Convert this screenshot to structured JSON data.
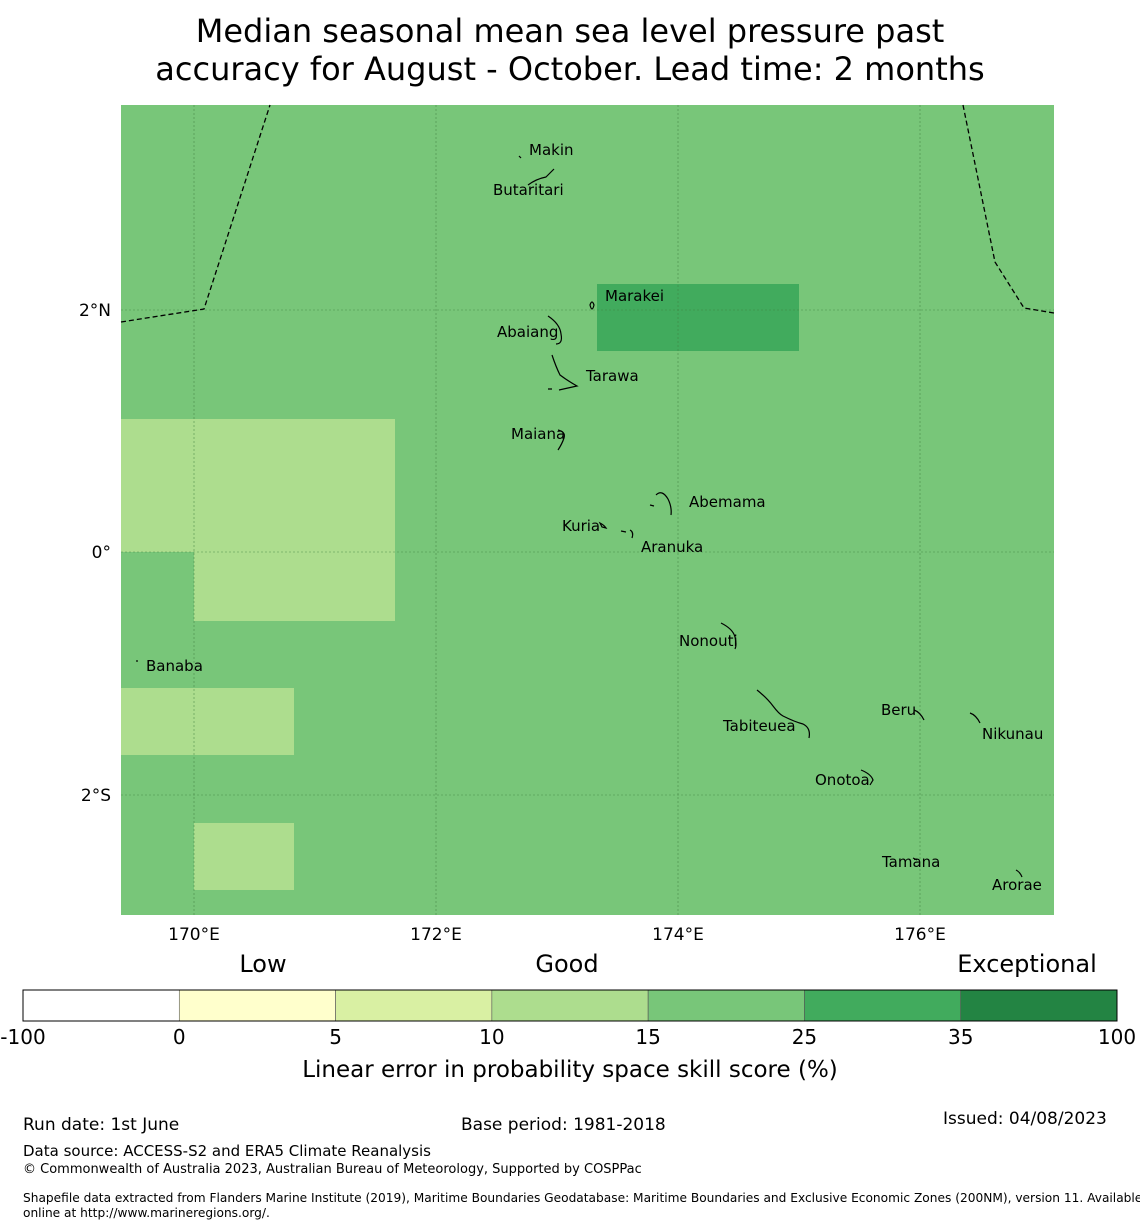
{
  "title": {
    "line1": "Median seasonal mean sea level pressure past",
    "line2": "accuracy for August - October. Lead time: 2 months"
  },
  "map": {
    "background_color": "#78c679",
    "lat_labels": [
      "2°N",
      "0°",
      "2°S"
    ],
    "lon_labels": [
      "170°E",
      "172°E",
      "174°E",
      "176°E"
    ],
    "islands": [
      "Makin",
      "Butaritari",
      "Marakei",
      "Abaiang",
      "Tarawa",
      "Maiana",
      "Abemama",
      "Kuria",
      "Aranuka",
      "Nonouti",
      "Banaba",
      "Beru",
      "Tabiteuea",
      "Nikunau",
      "Onotoa",
      "Tamana",
      "Arorae"
    ]
  },
  "colorbar": {
    "category_labels": [
      "Low",
      "Good",
      "Exceptional"
    ],
    "ticks": [
      "-100",
      "0",
      "5",
      "10",
      "15",
      "25",
      "35",
      "100"
    ],
    "colors": [
      "#ffffff",
      "#ffffcc",
      "#d9f0a3",
      "#addd8e",
      "#78c679",
      "#41ab5d",
      "#238443"
    ],
    "label": "Linear error in probability space skill score (%)"
  },
  "footer": {
    "run_date": "Run date: 1st June",
    "base_period": "Base period: 1981-2018",
    "issued": "Issued: 04/08/2023",
    "data_source": "Data source: ACCESS-S2 and ERA5 Climate Reanalysis",
    "copyright": "© Commonwealth of Australia 2023, Australian Bureau of Meteorology, Supported by COSPPac",
    "shapefile_line1": "Shapefile data extracted from Flanders Marine Institute (2019), Maritime Boundaries Geodatabase: Maritime Boundaries and Exclusive Economic Zones (200NM), version 11. Available",
    "shapefile_line2": "online at http://www.marineregions.org/."
  }
}
